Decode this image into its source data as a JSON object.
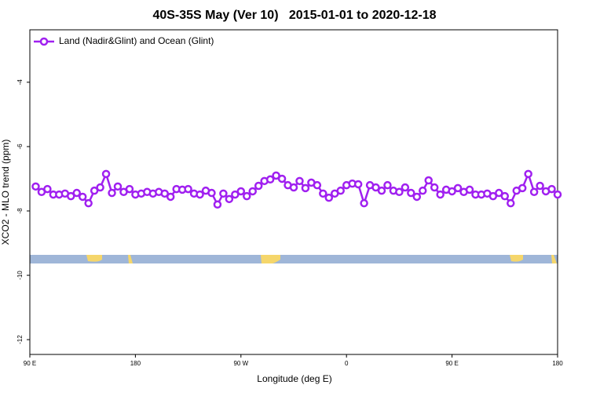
{
  "chart_data": {
    "type": "line",
    "title": "40S-35S May (Ver 10)   2015-01-01 to 2020-12-18",
    "xlabel": "Longitude (deg E)",
    "ylabel": "XCO2 - MLO trend (ppm)",
    "x": [
      95,
      100,
      105,
      110,
      115,
      120,
      125,
      130,
      135,
      140,
      145,
      150,
      155,
      160,
      165,
      170,
      175,
      180,
      185,
      190,
      195,
      200,
      205,
      210,
      215,
      220,
      225,
      230,
      235,
      240,
      245,
      250,
      255,
      260,
      265,
      270,
      275,
      280,
      285,
      290,
      295,
      300,
      305,
      310,
      315,
      320,
      325,
      330,
      335,
      340,
      345,
      350,
      355,
      360,
      365,
      370,
      375,
      380,
      385,
      390,
      395,
      400,
      405,
      410,
      415,
      420,
      425,
      430,
      435,
      440,
      445,
      450,
      455,
      460,
      465,
      470,
      475,
      480,
      485,
      490,
      495,
      500,
      505,
      510,
      515,
      520,
      525,
      530,
      535,
      540
    ],
    "series": [
      {
        "name": "Land (Nadir&Glint) and Ocean (Glint)",
        "color": "#a020f0",
        "values": [
          -7.24,
          -7.41,
          -7.32,
          -7.49,
          -7.49,
          -7.46,
          -7.54,
          -7.44,
          -7.56,
          -7.76,
          -7.37,
          -7.27,
          -6.85,
          -7.44,
          -7.24,
          -7.41,
          -7.32,
          -7.49,
          -7.46,
          -7.41,
          -7.46,
          -7.41,
          -7.46,
          -7.56,
          -7.32,
          -7.34,
          -7.32,
          -7.46,
          -7.49,
          -7.37,
          -7.44,
          -7.8,
          -7.46,
          -7.63,
          -7.49,
          -7.39,
          -7.54,
          -7.39,
          -7.22,
          -7.07,
          -7.02,
          -6.9,
          -7.0,
          -7.2,
          -7.27,
          -7.07,
          -7.29,
          -7.12,
          -7.2,
          -7.46,
          -7.59,
          -7.46,
          -7.37,
          -7.2,
          -7.15,
          -7.17,
          -7.76,
          -7.2,
          -7.27,
          -7.37,
          -7.2,
          -7.37,
          -7.41,
          -7.27,
          -7.44,
          -7.56,
          -7.37,
          -7.05,
          -7.27,
          -7.49,
          -7.34,
          -7.39,
          -7.29,
          -7.41,
          -7.34,
          -7.49,
          -7.49,
          -7.46,
          -7.54,
          -7.44,
          -7.54,
          -7.76,
          -7.37,
          -7.29,
          -6.85,
          -7.41,
          -7.22,
          -7.39,
          -7.32,
          -7.49
        ]
      }
    ],
    "xlim": [
      90,
      540
    ],
    "xticks": [
      {
        "value": 90,
        "label": "90 E"
      },
      180,
      {
        "value": 270,
        "label": "90 W"
      },
      {
        "value": 360,
        "label": "0"
      },
      {
        "value": 450,
        "label": "90 E"
      },
      {
        "value": 540,
        "label": "180"
      }
    ],
    "ylim": [
      -12.46,
      -2.37
    ],
    "yticks": [
      -12,
      -10,
      -8,
      -6,
      -4
    ],
    "legend": "upper left"
  }
}
